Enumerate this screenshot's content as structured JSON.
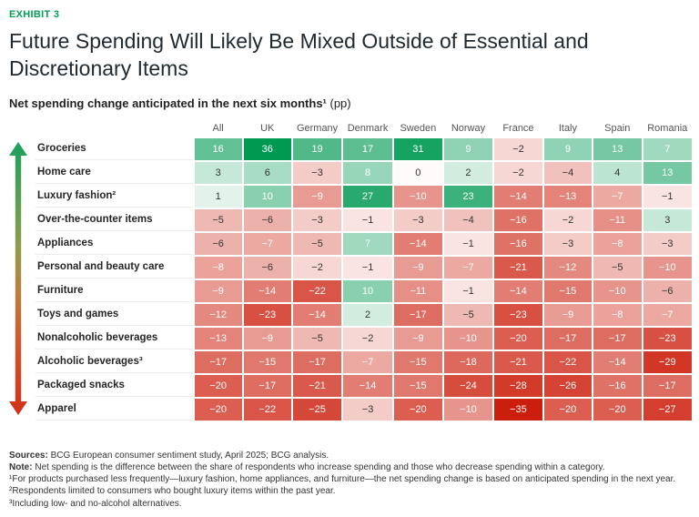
{
  "exhibit": {
    "label": "EXHIBIT 3"
  },
  "title": "Future Spending Will Likely Be Mixed Outside of Essential and Discretionary Items",
  "subtitle": {
    "bold": "Net spending change anticipated in the next six months¹",
    "normal": " (pp)"
  },
  "chart_data": {
    "type": "heatmap",
    "unit": "pp",
    "columns": [
      "All",
      "UK",
      "Germany",
      "Denmark",
      "Sweden",
      "Norway",
      "France",
      "Italy",
      "Spain",
      "Romania"
    ],
    "rows": [
      {
        "label": "Groceries",
        "values": [
          16,
          36,
          19,
          17,
          31,
          9,
          -2,
          9,
          13,
          7
        ]
      },
      {
        "label": "Home care",
        "values": [
          3,
          6,
          -3,
          8,
          0,
          2,
          -2,
          -4,
          4,
          13
        ]
      },
      {
        "label": "Luxury fashion²",
        "values": [
          1,
          10,
          -9,
          27,
          -10,
          23,
          -14,
          -13,
          -7,
          -1
        ]
      },
      {
        "label": "Over-the-counter items",
        "values": [
          -5,
          -6,
          -3,
          -1,
          -3,
          -4,
          -16,
          -2,
          -11,
          3
        ]
      },
      {
        "label": "Appliances",
        "values": [
          -6,
          -7,
          -5,
          7,
          -14,
          -1,
          -16,
          -3,
          -8,
          -3
        ]
      },
      {
        "label": "Personal and beauty care",
        "values": [
          -8,
          -6,
          -2,
          -1,
          -9,
          -7,
          -21,
          -12,
          -5,
          -10
        ]
      },
      {
        "label": "Furniture",
        "values": [
          -9,
          -14,
          -22,
          10,
          -11,
          -1,
          -14,
          -15,
          -10,
          -6
        ]
      },
      {
        "label": "Toys and games",
        "values": [
          -12,
          -23,
          -14,
          2,
          -17,
          -5,
          -23,
          -9,
          -8,
          -7
        ]
      },
      {
        "label": "Nonalcoholic beverages",
        "values": [
          -13,
          -9,
          -5,
          -2,
          -9,
          -10,
          -20,
          -17,
          -17,
          -23
        ]
      },
      {
        "label": "Alcoholic beverages³",
        "values": [
          -17,
          -15,
          -17,
          -7,
          -15,
          -18,
          -21,
          -22,
          -14,
          -29
        ]
      },
      {
        "label": "Packaged snacks",
        "values": [
          -20,
          -17,
          -21,
          -14,
          -15,
          -24,
          -28,
          -26,
          -16,
          -17
        ]
      },
      {
        "label": "Apparel",
        "values": [
          -20,
          -22,
          -25,
          -3,
          -20,
          -10,
          -35,
          -20,
          -20,
          -27
        ]
      }
    ],
    "scale": {
      "max_positive": 36,
      "max_negative": -35
    },
    "colors": {
      "positive": "#009952",
      "negative": "#cc1e0c",
      "neutral": "#fdf9f8"
    }
  },
  "footnotes": {
    "sources_label": "Sources:",
    "sources_text": " BCG European consumer sentiment study, April 2025; BCG analysis.",
    "note_label": "Note:",
    "note_text": " Net spending is the difference between the share of respondents who increase spending and those who decrease spending within a category.",
    "lines": [
      "¹For products purchased less frequently—luxury fashion, home appliances, and furniture—the net spending change is based on anticipated spending in the next year.",
      "²Respondents limited to consumers who bought luxury items within the past year.",
      "³Including low- and no-alcohol alternatives."
    ]
  }
}
